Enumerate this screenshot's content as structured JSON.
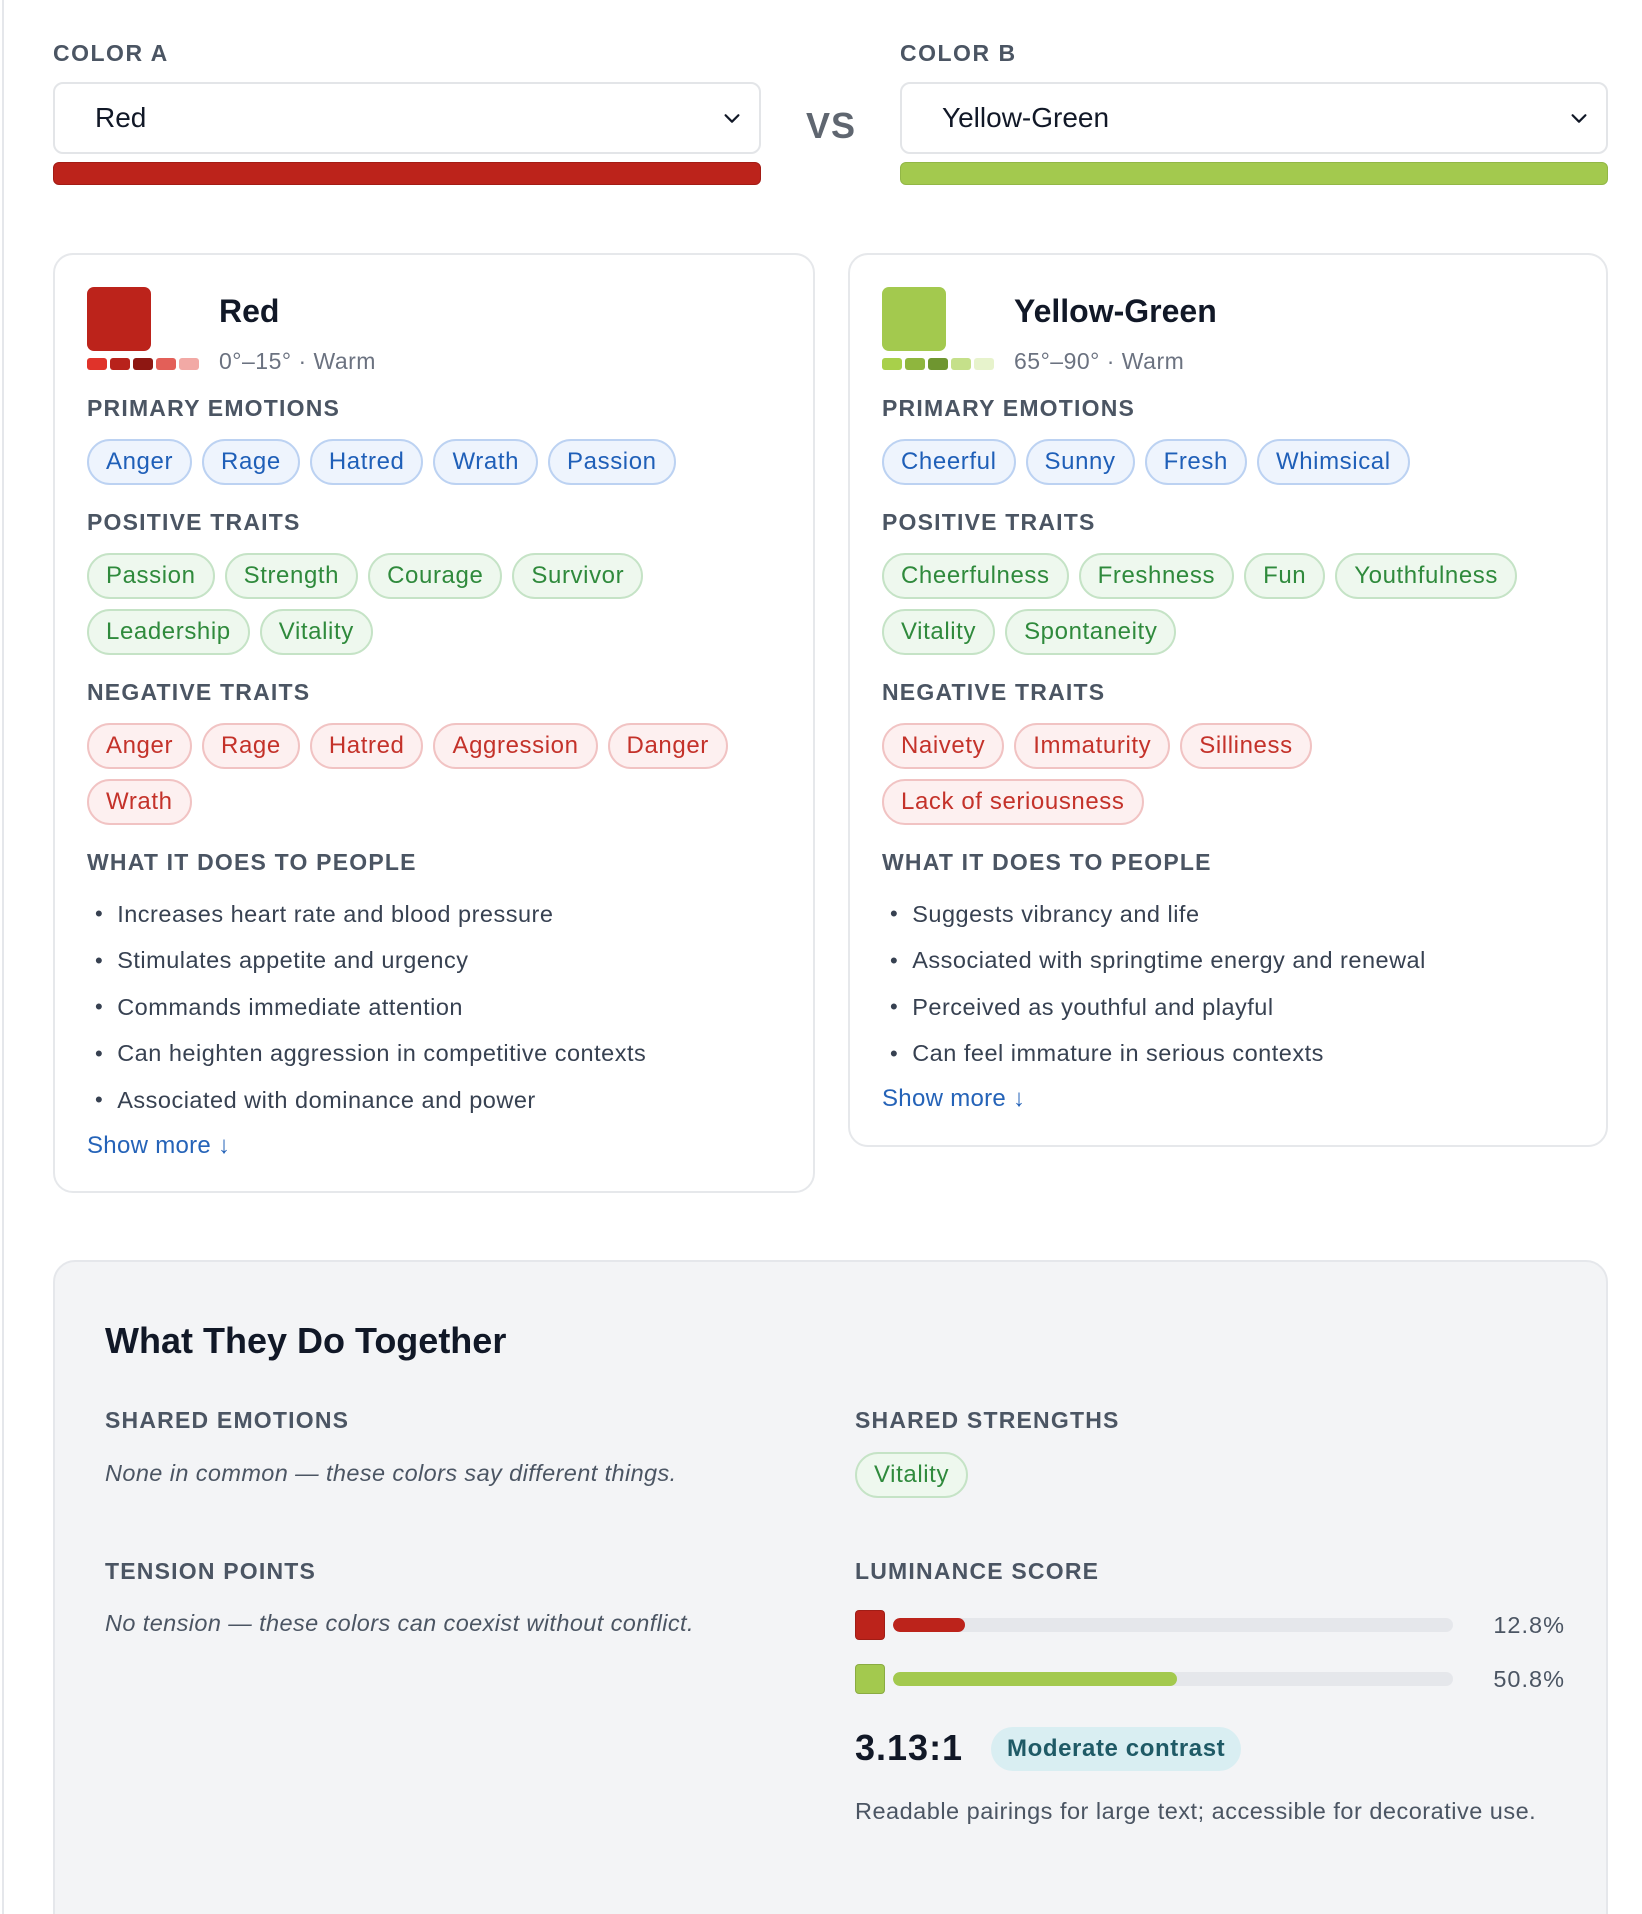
{
  "color_a": {
    "label": "COLOR A",
    "selected": "Red",
    "color": "#bc231b",
    "name": "Red",
    "meta": "0°–15° · Warm",
    "shades": [
      "#e0332a",
      "#b8221b",
      "#8e1712",
      "#e35f58",
      "#f2a9a5"
    ],
    "primary_emotions_label": "PRIMARY EMOTIONS",
    "primary_emotions": [
      "Anger",
      "Rage",
      "Hatred",
      "Wrath",
      "Passion"
    ],
    "positive_label": "POSITIVE TRAITS",
    "positive": [
      "Passion",
      "Strength",
      "Courage",
      "Survivor",
      "Leadership",
      "Vitality"
    ],
    "negative_label": "NEGATIVE TRAITS",
    "negative": [
      "Anger",
      "Rage",
      "Hatred",
      "Aggression",
      "Danger",
      "Wrath"
    ],
    "effects_label": "WHAT IT DOES TO PEOPLE",
    "effects": [
      "Increases heart rate and blood pressure",
      "Stimulates appetite and urgency",
      "Commands immediate attention",
      "Can heighten aggression in competitive contexts",
      "Associated with dominance and power"
    ],
    "show_more": "Show more ↓"
  },
  "vs_label": "VS",
  "color_b": {
    "label": "COLOR B",
    "selected": "Yellow-Green",
    "color": "#a3c94e",
    "name": "Yellow-Green",
    "meta": "65°–90° · Warm",
    "shades": [
      "#a8d04a",
      "#8fb63e",
      "#6f9630",
      "#c5e08a",
      "#e7f3cc"
    ],
    "primary_emotions_label": "PRIMARY EMOTIONS",
    "primary_emotions": [
      "Cheerful",
      "Sunny",
      "Fresh",
      "Whimsical"
    ],
    "positive_label": "POSITIVE TRAITS",
    "positive": [
      "Cheerfulness",
      "Freshness",
      "Fun",
      "Youthfulness",
      "Vitality",
      "Spontaneity"
    ],
    "negative_label": "NEGATIVE TRAITS",
    "negative": [
      "Naivety",
      "Immaturity",
      "Silliness",
      "Lack of seriousness"
    ],
    "effects_label": "WHAT IT DOES TO PEOPLE",
    "effects": [
      "Suggests vibrancy and life",
      "Associated with springtime energy and renewal",
      "Perceived as youthful and playful",
      "Can feel immature in serious contexts"
    ],
    "show_more": "Show more ↓"
  },
  "together": {
    "title": "What They Do Together",
    "shared_emotions_label": "SHARED EMOTIONS",
    "shared_emotions_note": "None in common — these colors say different things.",
    "shared_strengths_label": "SHARED STRENGTHS",
    "shared_strengths": [
      "Vitality"
    ],
    "tension_label": "TENSION POINTS",
    "tension_note": "No tension — these colors can coexist without conflict.",
    "luminance_label": "LUMINANCE SCORE",
    "luminance": [
      {
        "color": "#bc231b",
        "value": 12.8,
        "text": "12.8%"
      },
      {
        "color": "#a3c94e",
        "value": 50.8,
        "text": "50.8%"
      }
    ],
    "ratio": "3.13:1",
    "contrast_badge": "Moderate contrast",
    "readable_note": "Readable pairings for large text; accessible for decorative use."
  }
}
